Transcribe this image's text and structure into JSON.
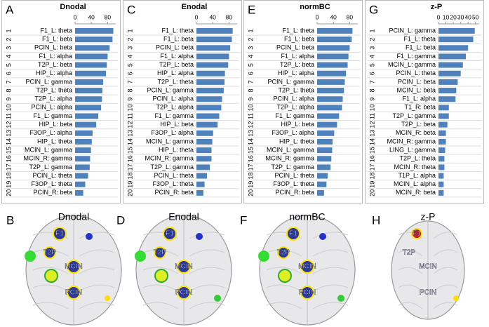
{
  "chart_data": [
    {
      "type": "barh",
      "panel_label": "A",
      "title": "Dnodal",
      "color": "#4f81bd",
      "xlim": [
        0,
        100
      ],
      "xticks": [
        0,
        40,
        80
      ],
      "ranks": [
        1,
        2,
        3,
        4,
        5,
        6,
        7,
        8,
        9,
        10,
        11,
        12,
        13,
        14,
        15,
        16,
        17,
        18,
        19,
        20
      ],
      "categories": [
        "F1_L: theta",
        "F1_L: beta",
        "PCIN_L: beta",
        "F1_L: alpha",
        "T2P_L: beta",
        "HIP_L: alpha",
        "PCIN_L: gamma",
        "T2P_L: theta",
        "T2P_L: alpha",
        "PCIN_L: alpha",
        "F1_L: gamma",
        "HIP_L: beta",
        "F3OP_L: alpha",
        "HIP_L: theta",
        "MCIN_L: gamma",
        "MCIN_R: gamma",
        "T2P_L: gamma",
        "PCIN_L: theta",
        "F3OP_L: theta",
        "PCIN_R: beta"
      ],
      "values": [
        94,
        92,
        85,
        80,
        78,
        76,
        69,
        67,
        66,
        64,
        57,
        52,
        43,
        41,
        39,
        37,
        36,
        32,
        25,
        20
      ]
    },
    {
      "type": "barh",
      "panel_label": "C",
      "title": "Enodal",
      "color": "#4f81bd",
      "xlim": [
        0,
        100
      ],
      "xticks": [
        0,
        40,
        80
      ],
      "ranks": [
        1,
        2,
        3,
        4,
        5,
        6,
        7,
        8,
        9,
        10,
        11,
        12,
        13,
        14,
        15,
        16,
        17,
        18,
        19,
        20
      ],
      "categories": [
        "F1_L: theta",
        "F1_L: beta",
        "PCIN_L: beta",
        "F1_L: alpha",
        "T2P_L: beta",
        "HIP_L: alpha",
        "T2P_L: theta",
        "PCIN_L: gamma",
        "PCIN_L: alpha",
        "T2P_L: alpha",
        "F1_L: gamma",
        "HIP_L: beta",
        "F3OP_L: alpha",
        "MCIN_L: gamma",
        "HIP_L: theta",
        "MCIN_R: gamma",
        "T2P_L: gamma",
        "PCIN_L: theta",
        "F3OP_L: theta",
        "PCIN_R: beta"
      ],
      "values": [
        89,
        87,
        83,
        80,
        78,
        70,
        69,
        67,
        63,
        61,
        56,
        52,
        41,
        39,
        37,
        37,
        33,
        26,
        20,
        17
      ]
    },
    {
      "type": "barh",
      "panel_label": "E",
      "title": "normBC",
      "color": "#4f81bd",
      "xlim": [
        0,
        100
      ],
      "xticks": [
        0,
        40,
        80
      ],
      "ranks": [
        1,
        2,
        3,
        4,
        5,
        6,
        7,
        8,
        9,
        10,
        11,
        12,
        13,
        14,
        15,
        16,
        17,
        18,
        19,
        20
      ],
      "categories": [
        "F1_L: theta",
        "F1_L: beta",
        "PCIN_L: beta",
        "F1_L: alpha",
        "T2P_L: beta",
        "HIP_L: alpha",
        "PCIN_L: gamma",
        "T2P_L: theta",
        "PCIN_L: alpha",
        "T2P_L: alpha",
        "F1_L: gamma",
        "HIP_L: beta",
        "F3OP_L: alpha",
        "HIP_L: theta",
        "MCIN_L: gamma",
        "MCIN_R: gamma",
        "T2P_L: gamma",
        "PCIN_L: theta",
        "F3OP_L: theta",
        "PCIN_R: beta"
      ],
      "values": [
        87,
        85,
        80,
        77,
        75,
        71,
        68,
        66,
        63,
        61,
        54,
        49,
        42,
        38,
        37,
        35,
        33,
        26,
        23,
        17
      ]
    },
    {
      "type": "barh",
      "panel_label": "G",
      "title": "z-P",
      "color": "#4f81bd",
      "xlim": [
        0,
        55
      ],
      "xticks": [
        0,
        10,
        20,
        30,
        40,
        50
      ],
      "ranks": [
        1,
        2,
        3,
        4,
        5,
        6,
        7,
        8,
        9,
        10,
        11,
        12,
        13,
        14,
        15,
        16,
        17,
        18,
        19,
        20
      ],
      "categories": [
        "PCIN_L: gamma",
        "F1_L: theta",
        "F1_L: beta",
        "F1_L: gamma",
        "MCIN_L: gamma",
        "PCIN_L: theta",
        "PCIN_L: beta",
        "MCIN_L: beta",
        "F1_L: alpha",
        "T1_R: beta",
        "T2P_L: gamma",
        "T2P_L: beta",
        "MCIN_R: beta",
        "MCIN_R: gamma",
        "LING_L: gamma",
        "T2P_L: theta",
        "MCIN_R: theta",
        "T1P_L: alpha",
        "MCIN_L: alpha",
        "MCIN_R: beta"
      ],
      "values": [
        49,
        47,
        40,
        37,
        33,
        30,
        26,
        24,
        23,
        14,
        14,
        12,
        10,
        10,
        9,
        8,
        8,
        7,
        7,
        7
      ]
    }
  ],
  "brain_panels": [
    {
      "letter": "B",
      "title": "Dnodal",
      "nodes": [
        "F1",
        "T2P",
        "MCIN",
        "PCIN"
      ]
    },
    {
      "letter": "D",
      "title": "Enodal",
      "nodes": [
        "F1",
        "T2P",
        "MCIN",
        "PCIN"
      ]
    },
    {
      "letter": "F",
      "title": "normBC",
      "nodes": [
        "F1",
        "T2P",
        "MCIN",
        "PCIN"
      ]
    },
    {
      "letter": "H",
      "title": "z-P",
      "nodes": [
        "F1",
        "T2P",
        "MCIN",
        "PCIN"
      ]
    }
  ]
}
